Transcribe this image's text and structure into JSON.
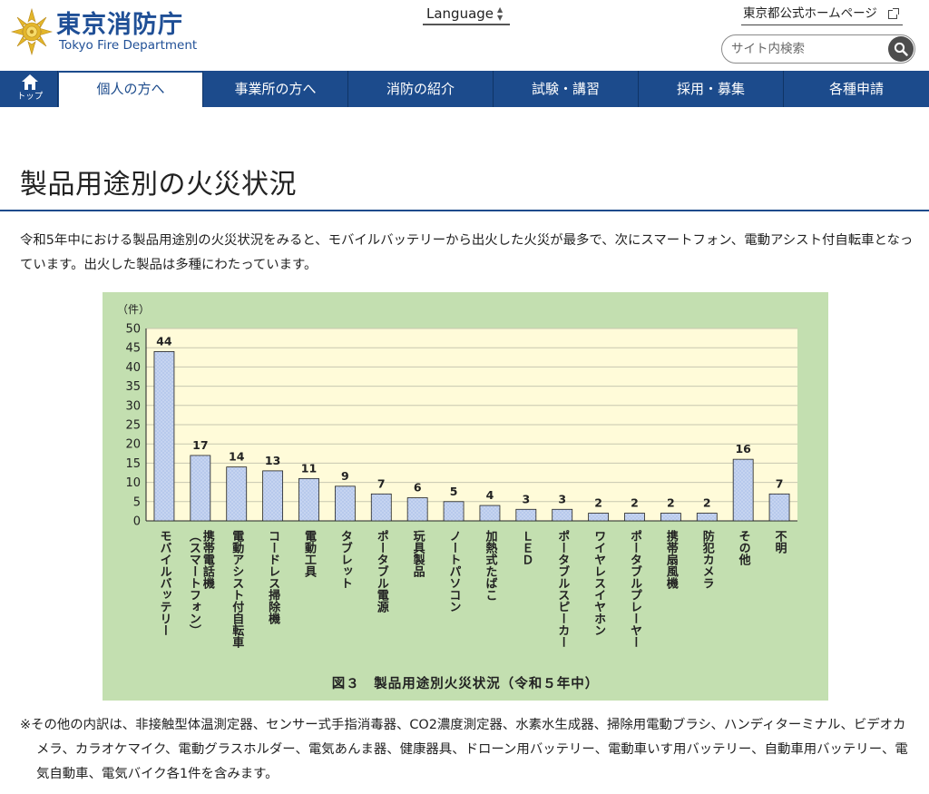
{
  "header": {
    "logo_jp": "東京消防庁",
    "logo_en": "Tokyo Fire Department",
    "language_label": "Language",
    "tokyo_link": "東京都公式ホームページ",
    "search_placeholder": "サイト内検索"
  },
  "nav": {
    "home_label": "トップ",
    "items": [
      {
        "label": "個人の方へ",
        "active": true
      },
      {
        "label": "事業所の方へ",
        "active": false
      },
      {
        "label": "消防の紹介",
        "active": false
      },
      {
        "label": "試験・講習",
        "active": false
      },
      {
        "label": "採用・募集",
        "active": false
      },
      {
        "label": "各種申請",
        "active": false
      }
    ]
  },
  "main": {
    "title": "製品用途別の火災状況",
    "lead": "令和5年中における製品用途別の火災状況をみると、モバイルバッテリーから出火した火災が最多で、次にスマートフォン、電動アシスト付自転車となっています。出火した製品は多種にわたっています。",
    "note": "※その他の内訳は、非接触型体温測定器、センサー式手指消毒器、CO2濃度測定器、水素水生成器、掃除用電動ブラシ、ハンディターミナル、ビデオカメラ、カラオケマイク、電動グラスホルダー、電気あんま器、健康器具、ドローン用バッテリー、電動車いす用バッテリー、自動車用バッテリー、電気自動車、電気バイク各1件を含みます。"
  },
  "chart_data": {
    "type": "bar",
    "title": "図３　製品用途別火災状況（令和５年中）",
    "ylabel": "（件）",
    "xlabel": "",
    "ylim": [
      0,
      50
    ],
    "yticks": [
      0,
      5,
      10,
      15,
      20,
      25,
      30,
      35,
      40,
      45,
      50
    ],
    "grid": true,
    "categories": [
      [
        "モバイルバッテリー"
      ],
      [
        "携帯電話機",
        "（スマートフォン）"
      ],
      [
        "電動アシスト付自転車"
      ],
      [
        "コードレス掃除機"
      ],
      [
        "電動工具"
      ],
      [
        "タブレット"
      ],
      [
        "ポータブル電源"
      ],
      [
        "玩具製品"
      ],
      [
        "ノートパソコン"
      ],
      [
        "加熱式たばこ"
      ],
      [
        "ＬＥＤ"
      ],
      [
        "ポータブルスピーカー"
      ],
      [
        "ワイヤレスイヤホン"
      ],
      [
        "ポータブルプレーヤー"
      ],
      [
        "携帯扇風機"
      ],
      [
        "防犯カメラ"
      ],
      [
        "その他"
      ],
      [
        "不明"
      ]
    ],
    "values": [
      44,
      17,
      14,
      13,
      11,
      9,
      7,
      6,
      5,
      4,
      3,
      3,
      2,
      2,
      2,
      2,
      16,
      7
    ],
    "colors": {
      "panel": "#c3dfb0",
      "plot": "#fffbd9",
      "bar": "#b7c9ec",
      "bar_border": "#222222",
      "grid": "#c7c7b0"
    }
  }
}
